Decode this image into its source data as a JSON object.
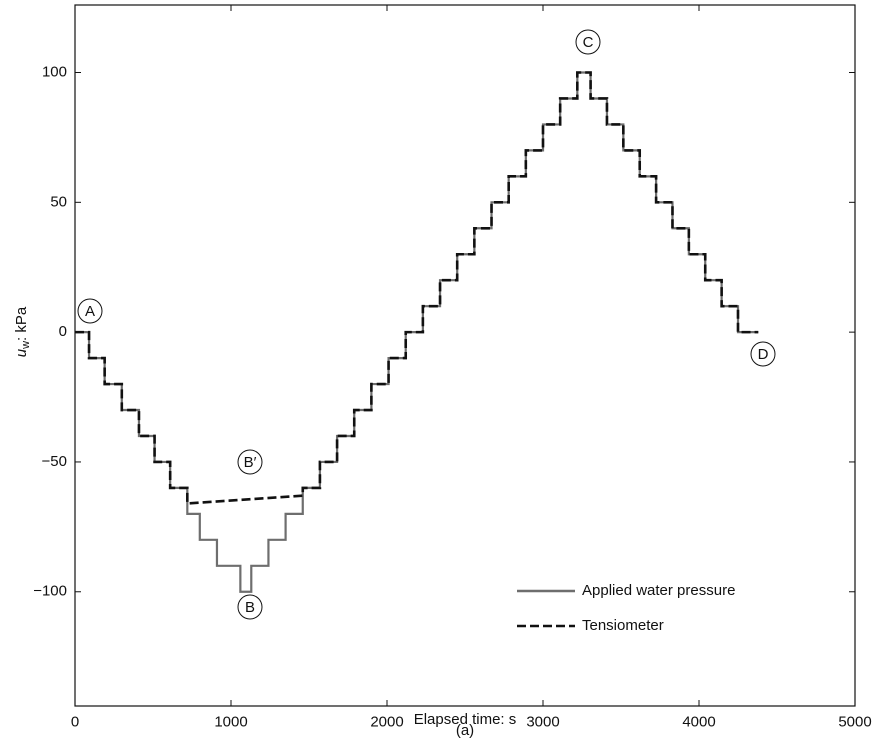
{
  "chart_data": {
    "type": "line",
    "xlabel": "Elapsed time: s",
    "ylabel_symbol": "u",
    "ylabel_subscript": "w",
    "ylabel_rest": ": kPa",
    "caption": "(a)",
    "xlim": [
      0,
      5000
    ],
    "xticks": [
      0,
      1000,
      2000,
      3000,
      4000,
      5000
    ],
    "ylim": [
      -144,
      126
    ],
    "yticks": [
      {
        "value": -100,
        "label": "−100"
      },
      {
        "value": -50,
        "label": "−50"
      },
      0,
      50,
      100
    ],
    "legend": "lower right",
    "annotations": [
      "A",
      "B",
      "B′",
      "C",
      "D"
    ],
    "series": [
      {
        "name": "Applied water pressure",
        "color": "#6e6e6e",
        "style": "solid",
        "x": [
          0,
          90,
          90,
          190,
          190,
          300,
          300,
          410,
          410,
          510,
          510,
          610,
          610,
          720,
          720,
          800,
          800,
          910,
          910,
          1060,
          1060,
          1130,
          1130,
          1240,
          1240,
          1350,
          1350,
          1460,
          1460,
          1570,
          1570,
          1680,
          1680,
          1790,
          1790,
          1900,
          1900,
          2010,
          2010,
          2120,
          2120,
          2230,
          2230,
          2340,
          2340,
          2450,
          2450,
          2560,
          2560,
          2670,
          2670,
          2780,
          2780,
          2890,
          2890,
          3000,
          3000,
          3110,
          3110,
          3220,
          3220,
          3305,
          3305,
          3410,
          3410,
          3515,
          3515,
          3620,
          3620,
          3725,
          3725,
          3830,
          3830,
          3935,
          3935,
          4040,
          4040,
          4145,
          4145,
          4250,
          4250,
          4380
        ],
        "values": [
          0,
          0,
          -10,
          -10,
          -20,
          -20,
          -30,
          -30,
          -40,
          -40,
          -50,
          -50,
          -60,
          -60,
          -70,
          -70,
          -80,
          -80,
          -90,
          -90,
          -100,
          -100,
          -90,
          -90,
          -80,
          -80,
          -70,
          -70,
          -60,
          -60,
          -50,
          -50,
          -40,
          -40,
          -30,
          -30,
          -20,
          -20,
          -10,
          -10,
          0,
          0,
          10,
          10,
          20,
          20,
          30,
          30,
          40,
          40,
          50,
          50,
          60,
          60,
          70,
          70,
          80,
          80,
          90,
          90,
          100,
          100,
          90,
          90,
          80,
          80,
          70,
          70,
          60,
          60,
          50,
          50,
          40,
          40,
          30,
          30,
          20,
          20,
          10,
          10,
          0,
          0
        ]
      },
      {
        "name": "Tensiometer",
        "color": "#111111",
        "style": "dashed",
        "x": [
          0,
          90,
          90,
          190,
          190,
          300,
          300,
          410,
          410,
          510,
          510,
          610,
          610,
          720,
          720,
          1460,
          1460,
          1570,
          1570,
          1680,
          1680,
          1790,
          1790,
          1900,
          1900,
          2010,
          2010,
          2120,
          2120,
          2230,
          2230,
          2340,
          2340,
          2450,
          2450,
          2560,
          2560,
          2670,
          2670,
          2780,
          2780,
          2890,
          2890,
          3000,
          3000,
          3110,
          3110,
          3220,
          3220,
          3305,
          3305,
          3410,
          3410,
          3515,
          3515,
          3620,
          3620,
          3725,
          3725,
          3830,
          3830,
          3935,
          3935,
          4040,
          4040,
          4145,
          4145,
          4250,
          4250,
          4380
        ],
        "values": [
          0,
          0,
          -10,
          -10,
          -20,
          -20,
          -30,
          -30,
          -40,
          -40,
          -50,
          -50,
          -60,
          -60,
          -66,
          -63,
          -60,
          -60,
          -50,
          -50,
          -40,
          -40,
          -30,
          -30,
          -20,
          -20,
          -10,
          -10,
          0,
          0,
          10,
          10,
          20,
          20,
          30,
          30,
          40,
          40,
          50,
          50,
          60,
          60,
          70,
          70,
          80,
          80,
          90,
          90,
          100,
          100,
          90,
          90,
          80,
          80,
          70,
          70,
          60,
          60,
          50,
          50,
          40,
          40,
          30,
          30,
          20,
          20,
          10,
          10,
          0,
          0
        ]
      }
    ]
  }
}
